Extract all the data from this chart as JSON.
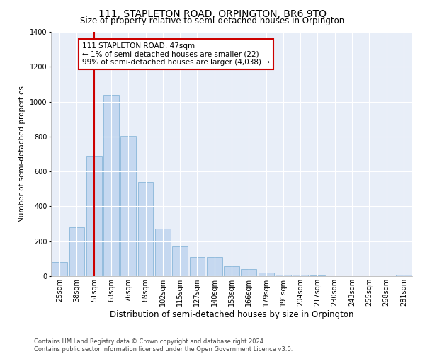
{
  "title": "111, STAPLETON ROAD, ORPINGTON, BR6 9TQ",
  "subtitle": "Size of property relative to semi-detached houses in Orpington",
  "xlabel": "Distribution of semi-detached houses by size in Orpington",
  "ylabel": "Number of semi-detached properties",
  "bar_color": "#c5d8f0",
  "bar_edge_color": "#7aadd4",
  "background_color": "#e8eef8",
  "grid_color": "#ffffff",
  "annotation_box_color": "#cc0000",
  "vline_color": "#cc0000",
  "vline_x": 2,
  "annotation_text": "111 STAPLETON ROAD: 47sqm\n← 1% of semi-detached houses are smaller (22)\n99% of semi-detached houses are larger (4,038) →",
  "categories": [
    "25sqm",
    "38sqm",
    "51sqm",
    "63sqm",
    "76sqm",
    "89sqm",
    "102sqm",
    "115sqm",
    "127sqm",
    "140sqm",
    "153sqm",
    "166sqm",
    "179sqm",
    "191sqm",
    "204sqm",
    "217sqm",
    "230sqm",
    "243sqm",
    "255sqm",
    "268sqm",
    "281sqm"
  ],
  "values": [
    80,
    280,
    685,
    1040,
    805,
    540,
    270,
    170,
    110,
    110,
    57,
    40,
    20,
    10,
    10,
    5,
    0,
    0,
    0,
    0,
    10
  ],
  "ylim": [
    0,
    1400
  ],
  "yticks": [
    0,
    200,
    400,
    600,
    800,
    1000,
    1200,
    1400
  ],
  "footnote": "Contains HM Land Registry data © Crown copyright and database right 2024.\nContains public sector information licensed under the Open Government Licence v3.0.",
  "title_fontsize": 10,
  "subtitle_fontsize": 8.5,
  "xlabel_fontsize": 8.5,
  "ylabel_fontsize": 7.5,
  "tick_fontsize": 7,
  "footnote_fontsize": 6,
  "annotation_fontsize": 7.5
}
